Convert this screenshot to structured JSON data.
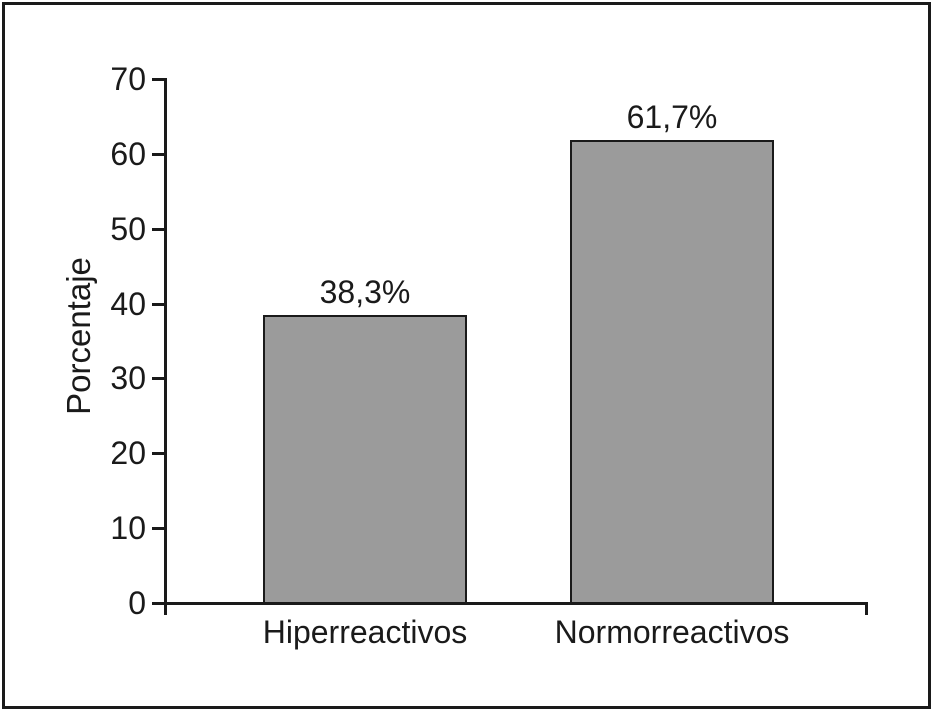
{
  "figure": {
    "background": "#ffffff",
    "frame_color": "#1a1a1a"
  },
  "chart_data": {
    "type": "bar",
    "title": "",
    "categories": [
      "Hiperreactivos",
      "Normorreactivos"
    ],
    "values": [
      38.3,
      61.7
    ],
    "value_labels": [
      "38,3%",
      "61,7%"
    ],
    "xlabel": "",
    "ylabel": "Porcentaje",
    "ylim": [
      0,
      70
    ],
    "yticks": [
      0,
      10,
      20,
      30,
      40,
      50,
      60,
      70
    ],
    "grid": false,
    "legend": false,
    "bar_color": "#9b9b9b",
    "bar_border_color": "#1a1a1a",
    "axis_color": "#1a1a1a",
    "text_color": "#1a1a1a"
  }
}
